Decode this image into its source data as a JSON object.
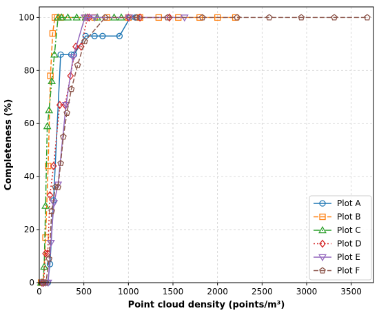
{
  "chart_data": {
    "type": "line",
    "xlabel": "Point cloud density (points/m³)",
    "ylabel": "Completeness (%)",
    "xlim": [
      0,
      3750
    ],
    "ylim": [
      0,
      104
    ],
    "xticks": [
      0,
      500,
      1000,
      1500,
      2000,
      2500,
      3000,
      3500
    ],
    "yticks": [
      0,
      20,
      40,
      60,
      80,
      100
    ],
    "grid": true,
    "legend_position": "lower-right",
    "series": [
      {
        "name": "Plot A",
        "color": "#1f77b4",
        "dash": "",
        "marker": "circle",
        "x": [
          35,
          60,
          95,
          120,
          160,
          240,
          360,
          390,
          520,
          620,
          710,
          900,
          1020,
          1080,
          1100
        ],
        "y": [
          0,
          0,
          0,
          7,
          31,
          86,
          86,
          86,
          93,
          93,
          93,
          93,
          100,
          100,
          100
        ]
      },
      {
        "name": "Plot B",
        "color": "#ff7f0e",
        "dash": "7 3",
        "marker": "square",
        "x": [
          20,
          45,
          70,
          100,
          125,
          150,
          175,
          200,
          240,
          520,
          620,
          760,
          1000,
          1130,
          1340,
          1560,
          1800,
          2000,
          2200
        ],
        "y": [
          0,
          0,
          17,
          44,
          78,
          94,
          100,
          100,
          100,
          100,
          100,
          100,
          100,
          100,
          100,
          100,
          100,
          100,
          100
        ]
      },
      {
        "name": "Plot C",
        "color": "#2ca02c",
        "dash": "9 3 2 3",
        "marker": "triangle-up",
        "x": [
          20,
          40,
          55,
          70,
          90,
          110,
          140,
          170,
          210,
          250,
          320,
          420,
          520,
          650,
          840,
          920
        ],
        "y": [
          0,
          0,
          6,
          29,
          59,
          65,
          76,
          86,
          100,
          100,
          100,
          100,
          100,
          100,
          100,
          100
        ]
      },
      {
        "name": "Plot D",
        "color": "#d62728",
        "dash": "2 3",
        "marker": "diamond",
        "x": [
          30,
          50,
          70,
          95,
          120,
          160,
          230,
          290,
          350,
          410,
          470,
          540,
          560,
          1000,
          1130,
          1460
        ],
        "y": [
          0,
          0,
          11,
          11,
          33,
          44,
          67,
          67,
          78,
          89,
          89,
          100,
          100,
          100,
          100,
          100
        ]
      },
      {
        "name": "Plot E",
        "color": "#9467bd",
        "dash": "",
        "marker": "triangle-down",
        "x": [
          40,
          70,
          100,
          130,
          165,
          210,
          300,
          380,
          510,
          540,
          620,
          1010,
          1630
        ],
        "y": [
          0,
          0,
          0,
          15,
          30,
          37,
          67,
          85,
          100,
          100,
          100,
          100,
          100
        ]
      },
      {
        "name": "Plot F",
        "color": "#8c564b",
        "dash": "7 3",
        "marker": "pentagon",
        "x": [
          40,
          75,
          110,
          140,
          180,
          210,
          240,
          270,
          310,
          360,
          430,
          510,
          740,
          1090,
          1440,
          1830,
          2220,
          2580,
          2940,
          3310,
          3680
        ],
        "y": [
          0,
          0,
          9,
          27,
          36,
          36,
          45,
          55,
          64,
          73,
          82,
          91,
          100,
          100,
          100,
          100,
          100,
          100,
          100,
          100,
          100
        ]
      }
    ]
  }
}
